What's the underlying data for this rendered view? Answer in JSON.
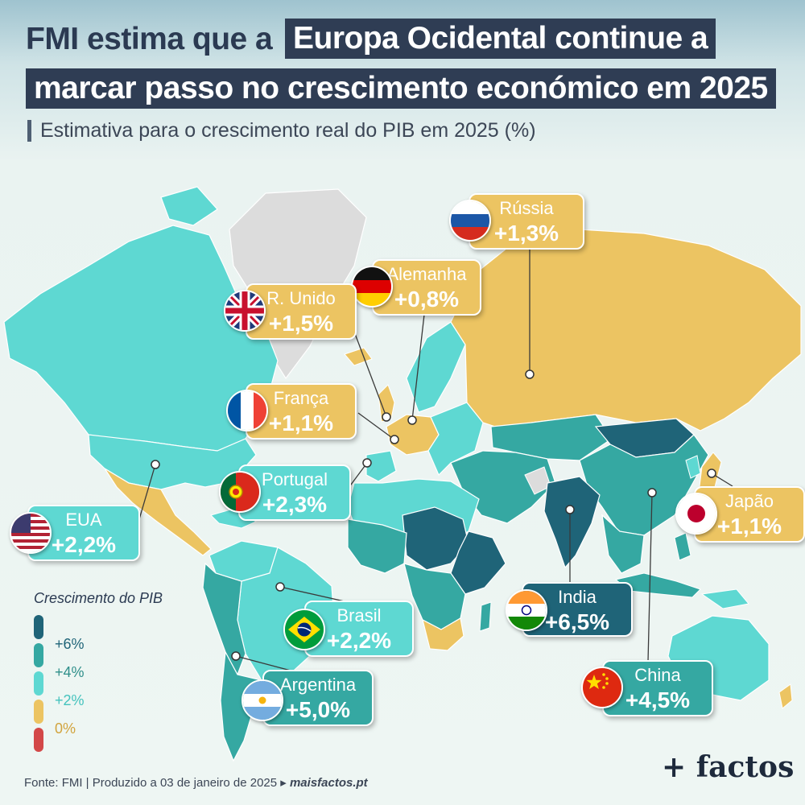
{
  "title": {
    "part1": "FMI estima que a",
    "part2": "Europa Ocidental continue a",
    "part3": "marcar passo no crescimento económico em 2025"
  },
  "subtitle": "Estimativa para o crescimento real do PIB em 2025 (%)",
  "legend": {
    "title": "Crescimento do PIB",
    "labels": [
      "+6%",
      "+4%",
      "+2%",
      "0%"
    ],
    "colors": [
      "#1f6478",
      "#35a8a2",
      "#5ed8d2",
      "#ecc462",
      "#d34848"
    ]
  },
  "countries": [
    {
      "id": "russia",
      "name": "Rússia",
      "value": "+1,3%",
      "growth": 1.3
    },
    {
      "id": "germany",
      "name": "Alemanha",
      "value": "+0,8%",
      "growth": 0.8
    },
    {
      "id": "uk",
      "name": "R. Unido",
      "value": "+1,5%",
      "growth": 1.5
    },
    {
      "id": "france",
      "name": "França",
      "value": "+1,1%",
      "growth": 1.1
    },
    {
      "id": "portugal",
      "name": "Portugal",
      "value": "+2,3%",
      "growth": 2.3
    },
    {
      "id": "usa",
      "name": "EUA",
      "value": "+2,2%",
      "growth": 2.2
    },
    {
      "id": "japan",
      "name": "Japão",
      "value": "+1,1%",
      "growth": 1.1
    },
    {
      "id": "india",
      "name": "India",
      "value": "+6,5%",
      "growth": 6.5
    },
    {
      "id": "brazil",
      "name": "Brasil",
      "value": "+2,2%",
      "growth": 2.2
    },
    {
      "id": "china",
      "name": "China",
      "value": "+4,5%",
      "growth": 4.5
    },
    {
      "id": "argentina",
      "name": "Argentina",
      "value": "+5,0%",
      "growth": 5.0
    }
  ],
  "source": {
    "text": "Fonte: FMI | Produzido a 03 de janeiro de 2025 ▸",
    "site": "maisfactos.pt"
  },
  "logo": "+ factos"
}
